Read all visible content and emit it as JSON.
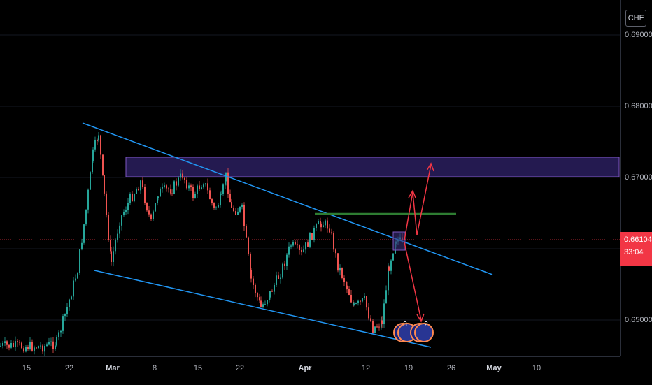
{
  "chart": {
    "currency": "CHF",
    "current_price": "0.66104",
    "countdown": "33:04",
    "colors": {
      "background": "#000000",
      "up_candle": "#26a69a",
      "down_candle": "#ef5350",
      "trendline": "#2196f3",
      "zone_fill": "#2a1f5e",
      "zone_border": "#7e57c2",
      "resistance_line": "#2e7d32",
      "projection_arrow": "#f23645",
      "price_line": "#f23645"
    },
    "price_axis_labels": [
      "0.69000",
      "0.68000",
      "0.67000",
      "0.65000"
    ],
    "time_axis_labels": [
      "15",
      "22",
      "Mar",
      "8",
      "15",
      "22",
      "Apr",
      "12",
      "19",
      "26",
      "May",
      "10"
    ],
    "bold_time_labels": [
      "Mar",
      "Apr",
      "May"
    ],
    "badges": [
      "3",
      "2"
    ]
  }
}
